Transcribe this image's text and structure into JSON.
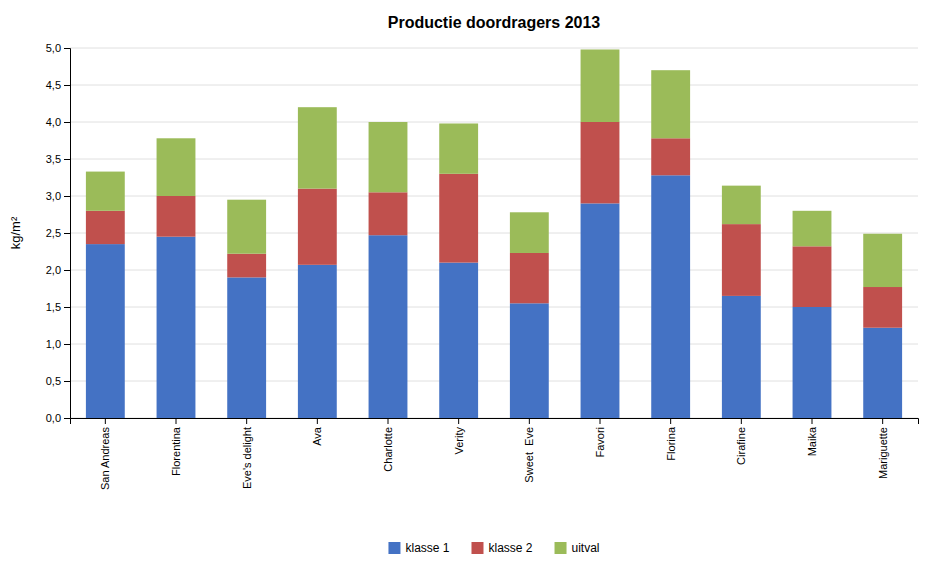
{
  "chart_data": {
    "type": "bar",
    "stacked": true,
    "title": "Productie doordragers 2013",
    "ylabel": "kg/m²",
    "categories": [
      "San Andreas",
      "Florentina",
      "Eve's delight",
      "Ava",
      "Charlotte",
      "Verity",
      "Sweet  Eve",
      "Favori",
      "Florina",
      "Cirafine",
      "Maika",
      "Mariguette"
    ],
    "series": [
      {
        "name": "klasse 1",
        "color": "#4472C4",
        "values": [
          2.35,
          2.45,
          1.9,
          2.07,
          2.47,
          2.1,
          1.55,
          2.9,
          3.28,
          1.65,
          1.5,
          1.22
        ]
      },
      {
        "name": "klasse 2",
        "color": "#C0504D",
        "values": [
          0.45,
          0.55,
          0.32,
          1.03,
          0.58,
          1.2,
          0.68,
          1.1,
          0.5,
          0.97,
          0.82,
          0.55
        ]
      },
      {
        "name": "uitval",
        "color": "#9BBB59",
        "values": [
          0.53,
          0.78,
          0.73,
          1.1,
          0.95,
          0.68,
          0.55,
          0.98,
          0.92,
          0.52,
          0.48,
          0.72
        ]
      }
    ],
    "ylim": [
      0,
      5.0
    ],
    "yticks": [
      {
        "value": 0.0,
        "label": "0,0"
      },
      {
        "value": 0.5,
        "label": "0,5"
      },
      {
        "value": 1.0,
        "label": "1,0"
      },
      {
        "value": 1.5,
        "label": "1,5"
      },
      {
        "value": 2.0,
        "label": "2,0"
      },
      {
        "value": 2.5,
        "label": "2,5"
      },
      {
        "value": 3.0,
        "label": "3,0"
      },
      {
        "value": 3.5,
        "label": "3,5"
      },
      {
        "value": 4.0,
        "label": "4,0"
      },
      {
        "value": 4.5,
        "label": "4,5"
      },
      {
        "value": 5.0,
        "label": "5,0"
      }
    ],
    "grid": true,
    "legend": "bottom"
  }
}
